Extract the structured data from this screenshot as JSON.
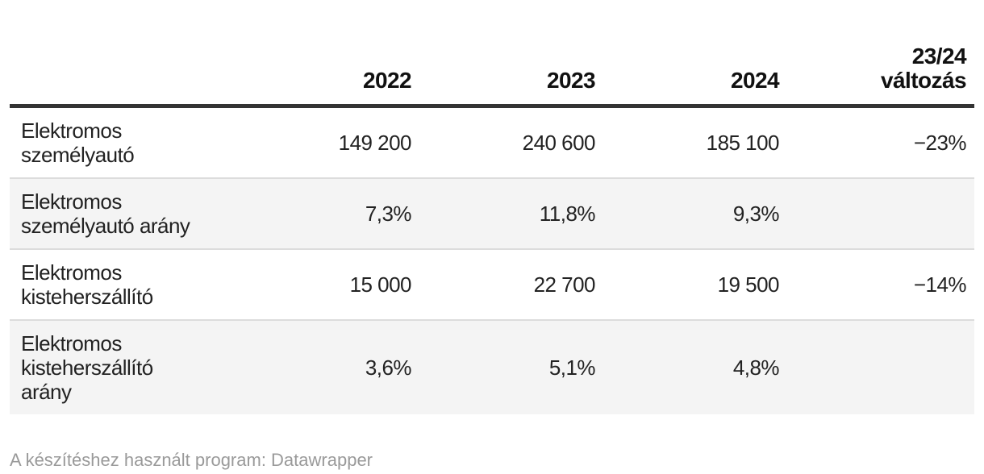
{
  "colors": {
    "header_rule": "#333333",
    "row_stripe": "#f4f4f4",
    "row_divider": "#dcdcdc",
    "body_text": "#222222",
    "header_text": "#111111",
    "attribution_text": "#9a9a9a"
  },
  "table": {
    "columns": [
      {
        "name": "label",
        "line1": "",
        "line2": ""
      },
      {
        "name": "2022",
        "line1": "",
        "line2": "2022"
      },
      {
        "name": "2023",
        "line1": "",
        "line2": "2023"
      },
      {
        "name": "2024",
        "line1": "",
        "line2": "2024"
      },
      {
        "name": "change",
        "line1": "23/24",
        "line2": "változás"
      }
    ]
  },
  "chart_data": {
    "type": "table",
    "columns": [
      "",
      "2022",
      "2023",
      "2024",
      "23/24 változás"
    ],
    "rows": [
      [
        "Elektromos személyautó",
        "149 200",
        "240 600",
        "185 100",
        "−23%"
      ],
      [
        "Elektromos személyautó arány",
        "7,3%",
        "11,8%",
        "9,3%",
        ""
      ],
      [
        "Elektromos kisteherszállító",
        "15 000",
        "22 700",
        "19 500",
        "−14%"
      ],
      [
        "Elektromos kisteherszállító arány",
        "3,6%",
        "5,1%",
        "4,8%",
        ""
      ]
    ],
    "numeric_rows": [
      {
        "label": "Elektromos személyautó",
        "values": [
          149200,
          240600,
          185100
        ],
        "change_pct": -23
      },
      {
        "label": "Elektromos személyautó arány",
        "values_pct": [
          7.3,
          11.8,
          9.3
        ],
        "change_pct": null
      },
      {
        "label": "Elektromos kisteherszállító",
        "values": [
          15000,
          22700,
          19500
        ],
        "change_pct": -14
      },
      {
        "label": "Elektromos kisteherszállító arány",
        "values_pct": [
          3.6,
          5.1,
          4.8
        ],
        "change_pct": null
      }
    ],
    "title": "",
    "legend_position": "none",
    "grid": "row-dividers"
  },
  "footer": {
    "text": "A készítéshez használt program: Datawrapper"
  }
}
